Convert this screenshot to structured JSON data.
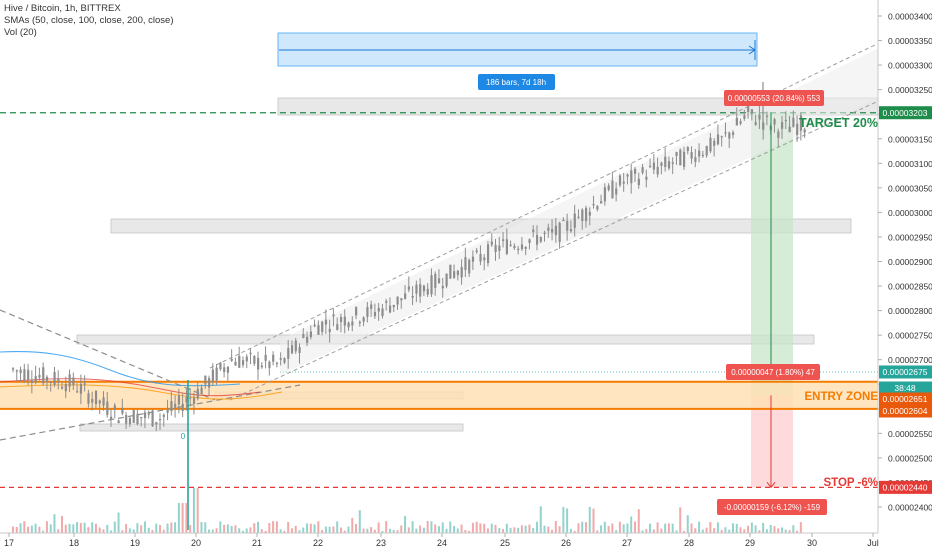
{
  "header": {
    "symbol_line": "Hive / Bitcoin, 1h, BITTREX",
    "sma_line": "SMAs (50, close, 100, close, 200, close)",
    "vol_line": "Vol (20)"
  },
  "chart_data": {
    "type": "candlestick",
    "symbol": "Hive / Bitcoin",
    "interval": "1h",
    "exchange": "BITTREX",
    "x_tick_labels": [
      "17",
      "18",
      "19",
      "20",
      "21",
      "22",
      "23",
      "24",
      "25",
      "26",
      "27",
      "28",
      "29",
      "30",
      "Jul"
    ],
    "y_tick_labels": [
      "0.00003400",
      "0.00003350",
      "0.00003300",
      "0.00003250",
      "0.00003200",
      "0.00003150",
      "0.00003100",
      "0.00003050",
      "0.00003000",
      "0.00002950",
      "0.00002900",
      "0.00002850",
      "0.00002800",
      "0.00002750",
      "0.00002700",
      "0.00002650",
      "0.00002600",
      "0.00002550",
      "0.00002500",
      "0.00002450",
      "0.00002400"
    ],
    "ylim": [
      2.38e-05,
      3.42e-05
    ],
    "approx_price_path": [
      {
        "day": 17.0,
        "price": 2.68e-05
      },
      {
        "day": 18.0,
        "price": 2.65e-05
      },
      {
        "day": 18.7,
        "price": 2.59e-05
      },
      {
        "day": 19.4,
        "price": 2.58e-05
      },
      {
        "day": 20.0,
        "price": 2.63e-05
      },
      {
        "day": 20.6,
        "price": 2.7e-05
      },
      {
        "day": 21.4,
        "price": 2.69e-05
      },
      {
        "day": 22.0,
        "price": 2.77e-05
      },
      {
        "day": 23.0,
        "price": 2.8e-05
      },
      {
        "day": 24.0,
        "price": 2.86e-05
      },
      {
        "day": 25.0,
        "price": 2.93e-05
      },
      {
        "day": 26.0,
        "price": 2.96e-05
      },
      {
        "day": 27.0,
        "price": 3.06e-05
      },
      {
        "day": 28.0,
        "price": 3.11e-05
      },
      {
        "day": 28.6,
        "price": 3.14e-05
      },
      {
        "day": 29.1,
        "price": 3.2e-05
      },
      {
        "day": 29.6,
        "price": 3.17e-05
      },
      {
        "day": 30.0,
        "price": 3.18e-05
      }
    ],
    "price_labels": [
      {
        "text": "0.00003203",
        "price": 3.203e-05,
        "color": "#1e8c4a"
      },
      {
        "text": "0.00002675",
        "price": 2.675e-05,
        "color": "#26a69a"
      },
      {
        "text": "38:48",
        "price": 2.664e-05,
        "color": "#26a69a"
      },
      {
        "text": "0.00002651",
        "price": 2.651e-05,
        "color": "#e8590c"
      },
      {
        "text": "0.00002604",
        "price": 2.604e-05,
        "color": "#e8590c"
      },
      {
        "text": "0.00002440",
        "price": 2.44e-05,
        "color": "#e53935"
      }
    ],
    "annotations": {
      "target_text": "TARGET 20%",
      "entry_text": "ENTRY ZONE",
      "stop_text": "STOP -6%",
      "range_label": "186 bars, 7d 18h",
      "high_label": "0.00000553 (20.84%) 553",
      "mid_label": "0.00000047 (1.80%) 47",
      "low_label": "-0.00000159 (-6.12%) -159",
      "zero_marker": "0"
    },
    "levels": {
      "target": 3.203e-05,
      "entry_top": 2.651e-05,
      "entry_bottom": 2.604e-05,
      "stop": 2.44e-05,
      "current": 2.675e-05
    },
    "colors": {
      "up_candle": "#8c8c8c",
      "target_line": "#1e8c4a",
      "entry_zone": "#f57c00",
      "stop_line": "#e53935",
      "profit_zone": "#c8e6c9",
      "loss_zone": "#ffcdd2",
      "range_box": "#bbdefb"
    },
    "grid": false
  }
}
